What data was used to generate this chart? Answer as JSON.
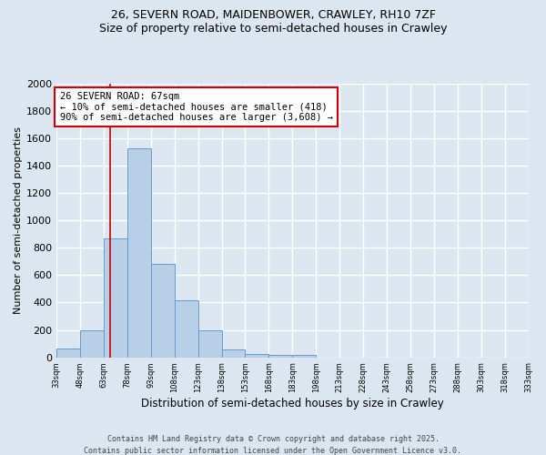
{
  "title_line1": "26, SEVERN ROAD, MAIDENBOWER, CRAWLEY, RH10 7ZF",
  "title_line2": "Size of property relative to semi-detached houses in Crawley",
  "xlabel": "Distribution of semi-detached houses by size in Crawley",
  "ylabel": "Number of semi-detached properties",
  "footer_line1": "Contains HM Land Registry data © Crown copyright and database right 2025.",
  "footer_line2": "Contains public sector information licensed under the Open Government Licence v3.0.",
  "bin_edges": [
    33,
    48,
    63,
    78,
    93,
    108,
    123,
    138,
    153,
    168,
    183,
    198,
    213,
    228,
    243,
    258,
    273,
    288,
    303,
    318,
    333
  ],
  "bin_labels": [
    "33sqm",
    "48sqm",
    "63sqm",
    "78sqm",
    "93sqm",
    "108sqm",
    "123sqm",
    "138sqm",
    "153sqm",
    "168sqm",
    "183sqm",
    "198sqm",
    "213sqm",
    "228sqm",
    "243sqm",
    "258sqm",
    "273sqm",
    "288sqm",
    "303sqm",
    "318sqm",
    "333sqm"
  ],
  "counts": [
    65,
    195,
    870,
    1530,
    680,
    415,
    195,
    60,
    25,
    20,
    15,
    0,
    0,
    0,
    0,
    0,
    0,
    0,
    0,
    0
  ],
  "bar_color": "#b8cfe8",
  "bar_edge_color": "#6699cc",
  "bg_color": "#dce6f0",
  "grid_color": "#ffffff",
  "property_size": 67,
  "property_line_color": "#cc0000",
  "annotation_text": "26 SEVERN ROAD: 67sqm\n← 10% of semi-detached houses are smaller (418)\n90% of semi-detached houses are larger (3,608) →",
  "annotation_box_color": "#ffffff",
  "annotation_box_edge": "#cc0000",
  "ylim": [
    0,
    2000
  ],
  "yticks": [
    0,
    200,
    400,
    600,
    800,
    1000,
    1200,
    1400,
    1600,
    1800,
    2000
  ]
}
